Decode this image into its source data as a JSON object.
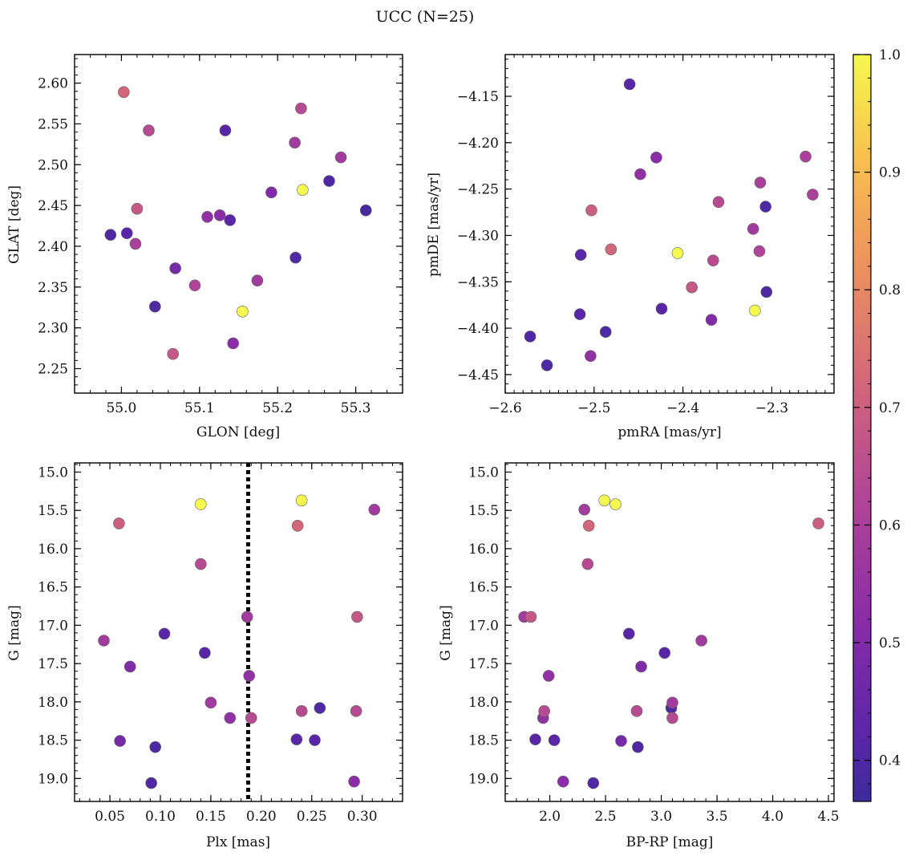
{
  "figure": {
    "title": "UCC (N=25)"
  },
  "colorbar": {
    "range": [
      0.365,
      1.0
    ],
    "ticks": [
      "0.4",
      "0.5",
      "0.6",
      "0.7",
      "0.8",
      "0.9",
      "1.0"
    ],
    "tick_values": [
      0.4,
      0.5,
      0.6,
      0.7,
      0.8,
      0.9,
      1.0
    ],
    "colormap": "plasma"
  },
  "chart_data": [
    {
      "type": "scatter",
      "id": "glon-glat",
      "xlabel": "GLON [deg]",
      "ylabel": "GLAT [deg]",
      "xlim": [
        54.94,
        55.36
      ],
      "ylim": [
        2.22,
        2.635
      ],
      "xticks": [
        "55.0",
        "55.1",
        "55.2",
        "55.3"
      ],
      "xtick_values": [
        55.0,
        55.1,
        55.2,
        55.3
      ],
      "yticks": [
        "2.25",
        "2.30",
        "2.35",
        "2.40",
        "2.45",
        "2.50",
        "2.55",
        "2.60"
      ],
      "ytick_values": [
        2.25,
        2.3,
        2.35,
        2.4,
        2.45,
        2.5,
        2.55,
        2.6
      ],
      "points": [
        {
          "x": 55.003,
          "y": 2.589,
          "p": 0.72
        },
        {
          "x": 55.035,
          "y": 2.542,
          "p": 0.64
        },
        {
          "x": 55.133,
          "y": 2.542,
          "p": 0.42
        },
        {
          "x": 55.23,
          "y": 2.569,
          "p": 0.64
        },
        {
          "x": 55.222,
          "y": 2.527,
          "p": 0.58
        },
        {
          "x": 55.281,
          "y": 2.509,
          "p": 0.58
        },
        {
          "x": 55.266,
          "y": 2.48,
          "p": 0.4
        },
        {
          "x": 55.232,
          "y": 2.469,
          "p": 1.0
        },
        {
          "x": 55.192,
          "y": 2.466,
          "p": 0.5
        },
        {
          "x": 55.313,
          "y": 2.444,
          "p": 0.38
        },
        {
          "x": 55.02,
          "y": 2.446,
          "p": 0.68
        },
        {
          "x": 55.11,
          "y": 2.436,
          "p": 0.54
        },
        {
          "x": 55.126,
          "y": 2.438,
          "p": 0.52
        },
        {
          "x": 55.139,
          "y": 2.432,
          "p": 0.42
        },
        {
          "x": 54.986,
          "y": 2.414,
          "p": 0.4
        },
        {
          "x": 55.007,
          "y": 2.416,
          "p": 0.42
        },
        {
          "x": 55.018,
          "y": 2.403,
          "p": 0.6
        },
        {
          "x": 55.223,
          "y": 2.386,
          "p": 0.4
        },
        {
          "x": 55.069,
          "y": 2.373,
          "p": 0.48
        },
        {
          "x": 55.174,
          "y": 2.358,
          "p": 0.58
        },
        {
          "x": 55.094,
          "y": 2.352,
          "p": 0.62
        },
        {
          "x": 55.043,
          "y": 2.326,
          "p": 0.4
        },
        {
          "x": 55.155,
          "y": 2.32,
          "p": 1.0
        },
        {
          "x": 55.143,
          "y": 2.281,
          "p": 0.52
        },
        {
          "x": 55.066,
          "y": 2.268,
          "p": 0.68
        }
      ]
    },
    {
      "type": "scatter",
      "id": "pmra-pmde",
      "xlabel": "pmRA [mas/yr]",
      "ylabel": "pmDE [mas/yr]",
      "xlim": [
        -2.6,
        -2.23
      ],
      "ylim": [
        -4.47,
        -4.105
      ],
      "xticks": [
        "−2.6",
        "−2.5",
        "−2.4",
        "−2.3"
      ],
      "xtick_values": [
        -2.6,
        -2.5,
        -2.4,
        -2.3
      ],
      "yticks": [
        "−4.15",
        "−4.20",
        "−4.25",
        "−4.30",
        "−4.35",
        "−4.40",
        "−4.45"
      ],
      "ytick_values": [
        -4.15,
        -4.2,
        -4.25,
        -4.3,
        -4.35,
        -4.4,
        -4.45
      ],
      "points": [
        {
          "x": -2.46,
          "y": -4.137,
          "p": 0.42
        },
        {
          "x": -2.43,
          "y": -4.216,
          "p": 0.52
        },
        {
          "x": -2.262,
          "y": -4.215,
          "p": 0.6
        },
        {
          "x": -2.448,
          "y": -4.234,
          "p": 0.54
        },
        {
          "x": -2.313,
          "y": -4.243,
          "p": 0.6
        },
        {
          "x": -2.254,
          "y": -4.256,
          "p": 0.6
        },
        {
          "x": -2.36,
          "y": -4.264,
          "p": 0.64
        },
        {
          "x": -2.307,
          "y": -4.269,
          "p": 0.4
        },
        {
          "x": -2.503,
          "y": -4.273,
          "p": 0.7
        },
        {
          "x": -2.321,
          "y": -4.293,
          "p": 0.58
        },
        {
          "x": -2.481,
          "y": -4.315,
          "p": 0.72
        },
        {
          "x": -2.406,
          "y": -4.319,
          "p": 1.0
        },
        {
          "x": -2.314,
          "y": -4.317,
          "p": 0.62
        },
        {
          "x": -2.515,
          "y": -4.321,
          "p": 0.42
        },
        {
          "x": -2.366,
          "y": -4.327,
          "p": 0.64
        },
        {
          "x": -2.39,
          "y": -4.356,
          "p": 0.68
        },
        {
          "x": -2.306,
          "y": -4.361,
          "p": 0.4
        },
        {
          "x": -2.424,
          "y": -4.379,
          "p": 0.42
        },
        {
          "x": -2.319,
          "y": -4.381,
          "p": 1.0
        },
        {
          "x": -2.516,
          "y": -4.385,
          "p": 0.42
        },
        {
          "x": -2.368,
          "y": -4.391,
          "p": 0.5
        },
        {
          "x": -2.487,
          "y": -4.404,
          "p": 0.4
        },
        {
          "x": -2.572,
          "y": -4.409,
          "p": 0.4
        },
        {
          "x": -2.504,
          "y": -4.43,
          "p": 0.54
        },
        {
          "x": -2.553,
          "y": -4.44,
          "p": 0.4
        }
      ]
    },
    {
      "type": "scatter",
      "id": "plx-g",
      "xlabel": "Plx [mas]",
      "ylabel": "G [mag]",
      "xlim": [
        0.015,
        0.34
      ],
      "ylim": [
        19.3,
        14.88
      ],
      "y_inverted": true,
      "vline": {
        "x": 0.187,
        "style": "dotted"
      },
      "xticks": [
        "0.05",
        "0.10",
        "0.15",
        "0.20",
        "0.25",
        "0.30"
      ],
      "xtick_values": [
        0.05,
        0.1,
        0.15,
        0.2,
        0.25,
        0.3
      ],
      "yticks": [
        "15.0",
        "15.5",
        "16.0",
        "16.5",
        "17.0",
        "17.5",
        "18.0",
        "18.5",
        "19.0"
      ],
      "ytick_values": [
        15.0,
        15.5,
        16.0,
        16.5,
        17.0,
        17.5,
        18.0,
        18.5,
        19.0
      ],
      "points": [
        {
          "x": 0.14,
          "y": 15.42,
          "p": 1.0
        },
        {
          "x": 0.24,
          "y": 15.37,
          "p": 1.0
        },
        {
          "x": 0.312,
          "y": 15.49,
          "p": 0.58
        },
        {
          "x": 0.059,
          "y": 15.67,
          "p": 0.7
        },
        {
          "x": 0.236,
          "y": 15.7,
          "p": 0.72
        },
        {
          "x": 0.14,
          "y": 16.2,
          "p": 0.64
        },
        {
          "x": 0.186,
          "y": 16.89,
          "p": 0.58
        },
        {
          "x": 0.295,
          "y": 16.89,
          "p": 0.68
        },
        {
          "x": 0.104,
          "y": 17.11,
          "p": 0.42
        },
        {
          "x": 0.044,
          "y": 17.2,
          "p": 0.58
        },
        {
          "x": 0.144,
          "y": 17.36,
          "p": 0.42
        },
        {
          "x": 0.07,
          "y": 17.54,
          "p": 0.5
        },
        {
          "x": 0.188,
          "y": 17.66,
          "p": 0.54
        },
        {
          "x": 0.15,
          "y": 18.01,
          "p": 0.58
        },
        {
          "x": 0.258,
          "y": 18.08,
          "p": 0.4
        },
        {
          "x": 0.24,
          "y": 18.12,
          "p": 0.64
        },
        {
          "x": 0.294,
          "y": 18.12,
          "p": 0.64
        },
        {
          "x": 0.169,
          "y": 18.21,
          "p": 0.54
        },
        {
          "x": 0.19,
          "y": 18.21,
          "p": 0.64
        },
        {
          "x": 0.06,
          "y": 18.51,
          "p": 0.48
        },
        {
          "x": 0.235,
          "y": 18.49,
          "p": 0.42
        },
        {
          "x": 0.253,
          "y": 18.5,
          "p": 0.42
        },
        {
          "x": 0.095,
          "y": 18.59,
          "p": 0.4
        },
        {
          "x": 0.091,
          "y": 19.06,
          "p": 0.4
        },
        {
          "x": 0.292,
          "y": 19.04,
          "p": 0.52
        }
      ]
    },
    {
      "type": "scatter",
      "id": "bprp-g",
      "xlabel": "BP-RP [mag]",
      "ylabel": "G [mag]",
      "xlim": [
        1.6,
        4.55
      ],
      "ylim": [
        19.3,
        14.88
      ],
      "y_inverted": true,
      "xticks": [
        "2.0",
        "2.5",
        "3.0",
        "3.5",
        "4.0",
        "4.5"
      ],
      "xtick_values": [
        2.0,
        2.5,
        3.0,
        3.5,
        4.0,
        4.5
      ],
      "yticks": [
        "15.0",
        "15.5",
        "16.0",
        "16.5",
        "17.0",
        "17.5",
        "18.0",
        "18.5",
        "19.0"
      ],
      "ytick_values": [
        15.0,
        15.5,
        16.0,
        16.5,
        17.0,
        17.5,
        18.0,
        18.5,
        19.0
      ],
      "points": [
        {
          "x": 2.49,
          "y": 15.37,
          "p": 1.0
        },
        {
          "x": 2.59,
          "y": 15.42,
          "p": 1.0
        },
        {
          "x": 2.31,
          "y": 15.49,
          "p": 0.58
        },
        {
          "x": 2.35,
          "y": 15.7,
          "p": 0.72
        },
        {
          "x": 4.41,
          "y": 15.67,
          "p": 0.7
        },
        {
          "x": 2.34,
          "y": 16.2,
          "p": 0.64
        },
        {
          "x": 1.77,
          "y": 16.89,
          "p": 0.58
        },
        {
          "x": 1.83,
          "y": 16.89,
          "p": 0.68
        },
        {
          "x": 2.71,
          "y": 17.11,
          "p": 0.42
        },
        {
          "x": 3.36,
          "y": 17.2,
          "p": 0.58
        },
        {
          "x": 3.03,
          "y": 17.36,
          "p": 0.42
        },
        {
          "x": 2.82,
          "y": 17.54,
          "p": 0.5
        },
        {
          "x": 1.99,
          "y": 17.66,
          "p": 0.54
        },
        {
          "x": 3.1,
          "y": 18.01,
          "p": 0.58
        },
        {
          "x": 3.09,
          "y": 18.08,
          "p": 0.4
        },
        {
          "x": 1.95,
          "y": 18.12,
          "p": 0.64
        },
        {
          "x": 2.78,
          "y": 18.12,
          "p": 0.64
        },
        {
          "x": 1.94,
          "y": 18.21,
          "p": 0.54
        },
        {
          "x": 3.1,
          "y": 18.21,
          "p": 0.64
        },
        {
          "x": 1.87,
          "y": 18.49,
          "p": 0.42
        },
        {
          "x": 2.04,
          "y": 18.5,
          "p": 0.42
        },
        {
          "x": 2.64,
          "y": 18.51,
          "p": 0.48
        },
        {
          "x": 2.79,
          "y": 18.59,
          "p": 0.4
        },
        {
          "x": 2.12,
          "y": 19.04,
          "p": 0.52
        },
        {
          "x": 2.39,
          "y": 19.06,
          "p": 0.4
        }
      ]
    }
  ]
}
